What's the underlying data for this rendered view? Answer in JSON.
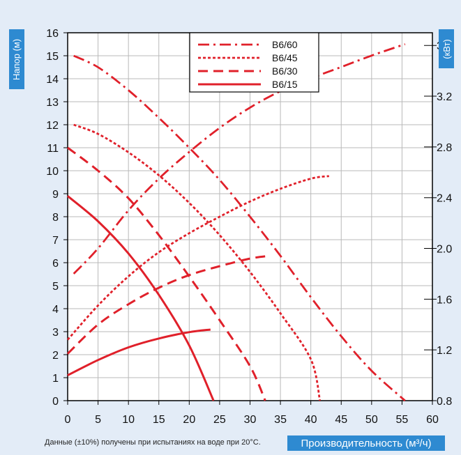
{
  "chart_data": {
    "type": "line",
    "ylabel_left": "Напор (м)",
    "ylabel_right": "(кВт)",
    "xlabel": "Производительность (м³/ч)",
    "note": "Данные (±10%) получены при испытаниях на воде при 20°С.",
    "xlim": [
      0,
      60
    ],
    "ylim_left": [
      0,
      16
    ],
    "ylim_right": [
      0.8,
      3.7
    ],
    "x_ticks": [
      "0",
      "5",
      "10",
      "15",
      "20",
      "25",
      "30",
      "35",
      "40",
      "45",
      "50",
      "55",
      "60"
    ],
    "y_ticks_left": [
      "0",
      "1",
      "2",
      "3",
      "4",
      "5",
      "6",
      "7",
      "8",
      "9",
      "10",
      "11",
      "12",
      "13",
      "14",
      "15",
      "16"
    ],
    "y_ticks_right": [
      {
        "value": 0.8,
        "label": "0.8"
      },
      {
        "value": 1.2,
        "label": "1.2"
      },
      {
        "value": 1.6,
        "label": "1.6"
      },
      {
        "value": 2.0,
        "label": "2.0"
      },
      {
        "value": 2.4,
        "label": "2.4"
      },
      {
        "value": 2.8,
        "label": "2.8"
      },
      {
        "value": 3.2,
        "label": "3.2"
      },
      {
        "value": 3.6,
        "label": "3.6"
      }
    ],
    "grid": true,
    "legend_position": "top-center",
    "line_color": "#e0202a",
    "series": [
      {
        "name": "B6/60",
        "dash": "dashdot",
        "head": [
          [
            1,
            15
          ],
          [
            5,
            14.5
          ],
          [
            10,
            13.5
          ],
          [
            15,
            12.3
          ],
          [
            20,
            11
          ],
          [
            25,
            9.6
          ],
          [
            30,
            8
          ],
          [
            35,
            6.3
          ],
          [
            40,
            4.5
          ],
          [
            45,
            2.8
          ],
          [
            50,
            1.3
          ],
          [
            55.5,
            0
          ]
        ],
        "power": [
          [
            1,
            1.8
          ],
          [
            5,
            2.0
          ],
          [
            10,
            2.3
          ],
          [
            15,
            2.55
          ],
          [
            20,
            2.76
          ],
          [
            25,
            2.95
          ],
          [
            30,
            3.11
          ],
          [
            35,
            3.24
          ],
          [
            40,
            3.34
          ],
          [
            45,
            3.43
          ],
          [
            50,
            3.52
          ],
          [
            55.5,
            3.61
          ]
        ]
      },
      {
        "name": "B6/45",
        "dash": "dotted",
        "head": [
          [
            1,
            12
          ],
          [
            5,
            11.6
          ],
          [
            10,
            10.8
          ],
          [
            15,
            9.8
          ],
          [
            20,
            8.6
          ],
          [
            25,
            7.2
          ],
          [
            30,
            5.6
          ],
          [
            35,
            3.8
          ],
          [
            40,
            1.8
          ],
          [
            41.5,
            0
          ]
        ],
        "power": [
          [
            0,
            1.28
          ],
          [
            5,
            1.55
          ],
          [
            10,
            1.78
          ],
          [
            15,
            1.97
          ],
          [
            20,
            2.12
          ],
          [
            25,
            2.25
          ],
          [
            30,
            2.37
          ],
          [
            35,
            2.47
          ],
          [
            40,
            2.55
          ],
          [
            43,
            2.57
          ]
        ]
      },
      {
        "name": "B6/30",
        "dash": "dashed",
        "head": [
          [
            0,
            11
          ],
          [
            5,
            10
          ],
          [
            10,
            8.8
          ],
          [
            15,
            7.2
          ],
          [
            20,
            5.4
          ],
          [
            25,
            3.5
          ],
          [
            30,
            1.5
          ],
          [
            32.5,
            0
          ]
        ],
        "power": [
          [
            0,
            1.17
          ],
          [
            5,
            1.4
          ],
          [
            10,
            1.56
          ],
          [
            15,
            1.69
          ],
          [
            20,
            1.79
          ],
          [
            25,
            1.86
          ],
          [
            30,
            1.92
          ],
          [
            33,
            1.94
          ]
        ]
      },
      {
        "name": "B6/15",
        "dash": "solid",
        "head": [
          [
            0,
            8.9
          ],
          [
            5,
            7.8
          ],
          [
            10,
            6.4
          ],
          [
            15,
            4.6
          ],
          [
            20,
            2.4
          ],
          [
            24,
            0
          ]
        ],
        "power": [
          [
            0,
            1.0
          ],
          [
            5,
            1.12
          ],
          [
            10,
            1.22
          ],
          [
            15,
            1.29
          ],
          [
            20,
            1.34
          ],
          [
            23.5,
            1.36
          ]
        ]
      }
    ]
  }
}
